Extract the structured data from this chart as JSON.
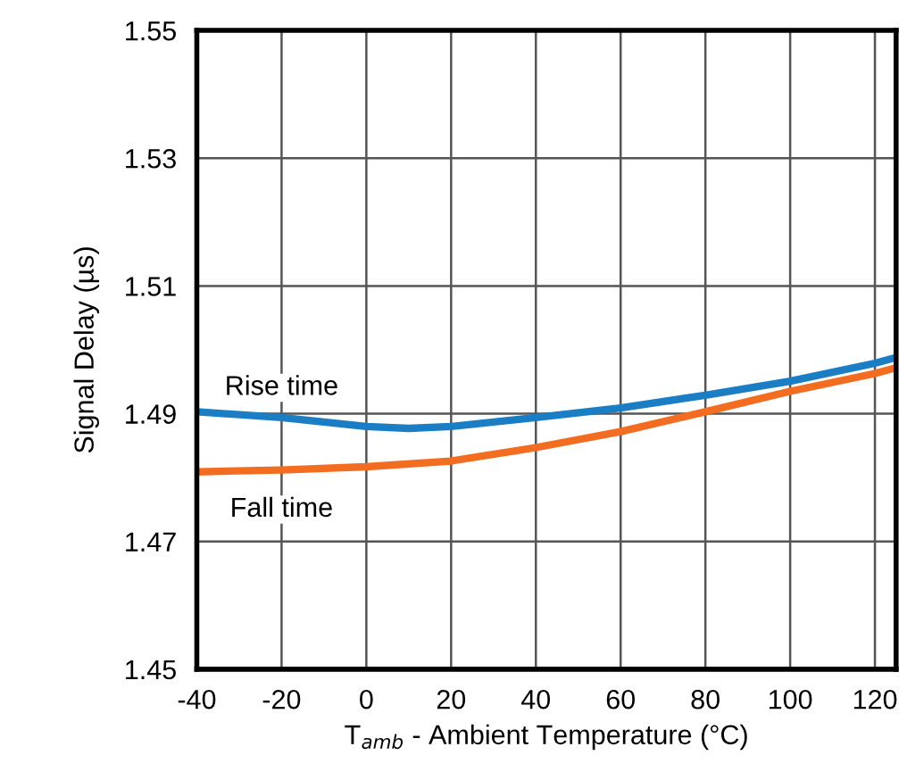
{
  "chart_data": {
    "type": "line",
    "xlabel": "T$_{amb}$ - Ambient Temperature (°C)",
    "ylabel": "Signal Delay (µs)",
    "x": [
      -40,
      -20,
      0,
      10,
      20,
      40,
      60,
      80,
      100,
      120,
      125
    ],
    "series": [
      {
        "name": "Rise time",
        "color": "#1b7dc4",
        "values": [
          1.4903,
          1.4894,
          1.488,
          1.4877,
          1.488,
          1.4894,
          1.4909,
          1.4929,
          1.4951,
          1.4979,
          1.4988
        ]
      },
      {
        "name": "Fall time",
        "color": "#f26d21",
        "x": [
          -40,
          -20,
          0,
          20,
          40,
          60,
          80,
          100,
          120,
          125
        ],
        "values": [
          1.4809,
          1.4812,
          1.4817,
          1.4826,
          1.4847,
          1.4872,
          1.4903,
          1.4935,
          1.4963,
          1.4972
        ]
      }
    ],
    "xlim": [
      -40,
      125
    ],
    "xticks": [
      -40,
      -20,
      0,
      20,
      40,
      60,
      80,
      100,
      120
    ],
    "ylim": [
      1.45,
      1.55
    ],
    "yticks": [
      1.45,
      1.47,
      1.49,
      1.51,
      1.53,
      1.55
    ],
    "grid": true,
    "legend": false,
    "marker": "none",
    "line_style": "solid"
  }
}
